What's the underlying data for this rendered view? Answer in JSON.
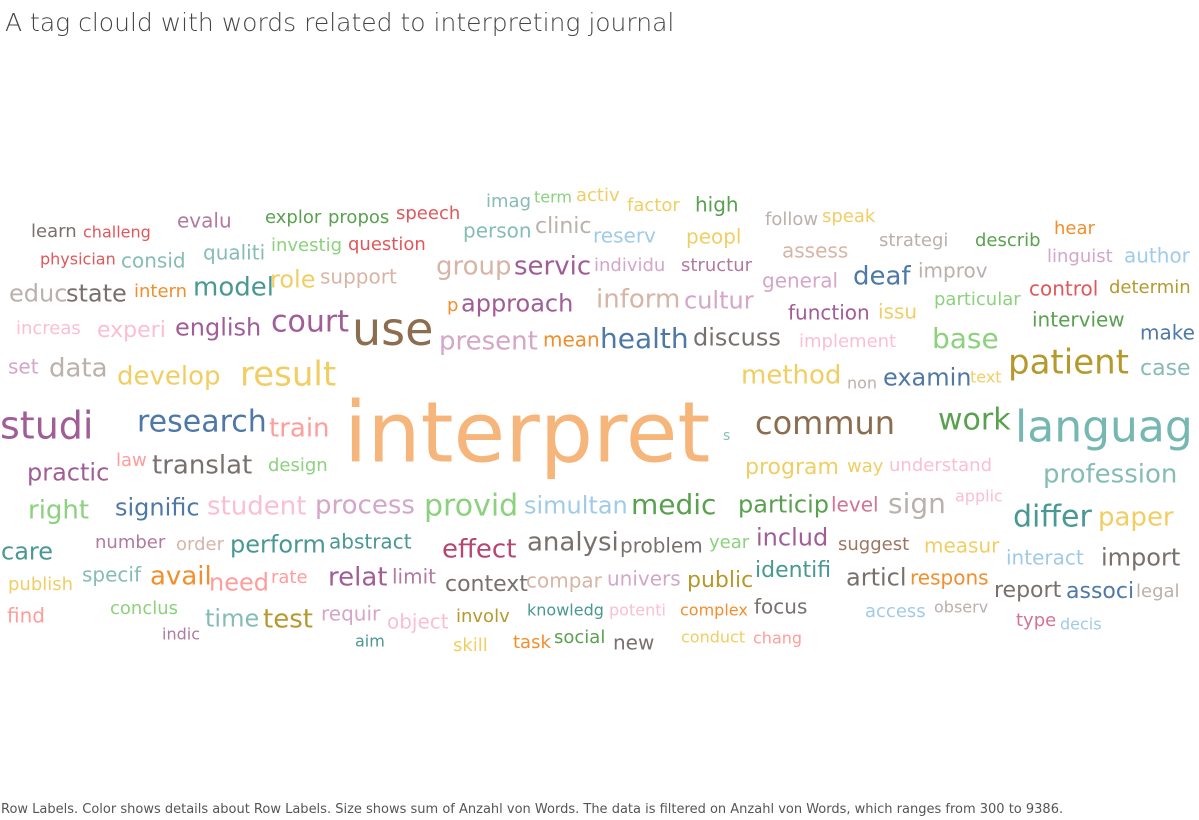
{
  "title": "A tag clould with words related to interpreting journal",
  "footer": "Row Labels.  Color shows details about Row Labels.  Size shows sum of Anzahl von Words. The data is filtered on Anzahl von Words, which ranges from 300 to 9386.",
  "chart_data": {
    "type": "word-cloud",
    "size_measure": "sum of Anzahl von Words",
    "filter_range": [
      300,
      9386
    ],
    "words": [
      {
        "text": "interpret",
        "value": 9386,
        "color": "#f6b67b"
      },
      {
        "text": "use",
        "value": 2200,
        "color": "#8c6d4f"
      },
      {
        "text": "languag",
        "value": 2100,
        "color": "#76b7b2"
      },
      {
        "text": "studi",
        "value": 2000,
        "color": "#a05d96"
      },
      {
        "text": "commun",
        "value": 1600,
        "color": "#8c6d4f"
      },
      {
        "text": "patient",
        "value": 1550,
        "color": "#b6992d"
      },
      {
        "text": "result",
        "value": 1450,
        "color": "#f1ce63"
      },
      {
        "text": "court",
        "value": 1350,
        "color": "#a05d96"
      },
      {
        "text": "research",
        "value": 1300,
        "color": "#4e79a7"
      },
      {
        "text": "work",
        "value": 1250,
        "color": "#59a14f"
      },
      {
        "text": "provid",
        "value": 1200,
        "color": "#8cd17d"
      },
      {
        "text": "differ",
        "value": 1150,
        "color": "#499894"
      },
      {
        "text": "health",
        "value": 1100,
        "color": "#4e79a7"
      },
      {
        "text": "profession",
        "value": 1050,
        "color": "#86bcb6"
      },
      {
        "text": "method",
        "value": 1000,
        "color": "#f1ce63"
      },
      {
        "text": "translat",
        "value": 980,
        "color": "#79706e"
      },
      {
        "text": "medic",
        "value": 960,
        "color": "#59a14f"
      },
      {
        "text": "data",
        "value": 950,
        "color": "#bab0ac"
      },
      {
        "text": "develop",
        "value": 940,
        "color": "#f1ce63"
      },
      {
        "text": "process",
        "value": 930,
        "color": "#d4a6c8"
      },
      {
        "text": "analysi",
        "value": 920,
        "color": "#79706e"
      },
      {
        "text": "train",
        "value": 910,
        "color": "#ff9d9a"
      },
      {
        "text": "paper",
        "value": 900,
        "color": "#f1ce63"
      },
      {
        "text": "sign",
        "value": 890,
        "color": "#bab0ac"
      },
      {
        "text": "student",
        "value": 880,
        "color": "#fabfd2"
      },
      {
        "text": "base",
        "value": 870,
        "color": "#8cd17d"
      },
      {
        "text": "group",
        "value": 860,
        "color": "#d7b5a6"
      },
      {
        "text": "effect",
        "value": 850,
        "color": "#b6456f"
      },
      {
        "text": "present",
        "value": 840,
        "color": "#d4a6c8"
      },
      {
        "text": "english",
        "value": 830,
        "color": "#a05d96"
      },
      {
        "text": "practic",
        "value": 820,
        "color": "#a05d96"
      },
      {
        "text": "care",
        "value": 810,
        "color": "#499894"
      },
      {
        "text": "servic",
        "value": 800,
        "color": "#a05d96"
      },
      {
        "text": "inform",
        "value": 790,
        "color": "#d7b5a6"
      },
      {
        "text": "program",
        "value": 780,
        "color": "#f1ce63"
      },
      {
        "text": "model",
        "value": 770,
        "color": "#499894"
      },
      {
        "text": "import",
        "value": 760,
        "color": "#79706e"
      },
      {
        "text": "deaf",
        "value": 750,
        "color": "#4e79a7"
      },
      {
        "text": "examin",
        "value": 740,
        "color": "#4e79a7"
      },
      {
        "text": "right",
        "value": 730,
        "color": "#8cd17d"
      },
      {
        "text": "signific",
        "value": 720,
        "color": "#4e79a7"
      },
      {
        "text": "particip",
        "value": 710,
        "color": "#59a14f"
      },
      {
        "text": "state",
        "value": 700,
        "color": "#79706e"
      },
      {
        "text": "discuss",
        "value": 690,
        "color": "#79706e"
      },
      {
        "text": "cultur",
        "value": 680,
        "color": "#d4a6c8"
      },
      {
        "text": "approach",
        "value": 670,
        "color": "#a05d96"
      },
      {
        "text": "simultan",
        "value": 660,
        "color": "#a0cbe8"
      },
      {
        "text": "case",
        "value": 650,
        "color": "#86bcb6"
      },
      {
        "text": "perform",
        "value": 640,
        "color": "#499894"
      },
      {
        "text": "educ",
        "value": 630,
        "color": "#bab0ac"
      },
      {
        "text": "relat",
        "value": 620,
        "color": "#a05d96"
      },
      {
        "text": "need",
        "value": 610,
        "color": "#ff9d9a"
      },
      {
        "text": "avail",
        "value": 600,
        "color": "#f28e2b"
      },
      {
        "text": "experi",
        "value": 590,
        "color": "#fabfd2"
      },
      {
        "text": "articl",
        "value": 580,
        "color": "#79706e"
      },
      {
        "text": "test",
        "value": 570,
        "color": "#b6992d"
      },
      {
        "text": "time",
        "value": 560,
        "color": "#86bcb6"
      },
      {
        "text": "role",
        "value": 550,
        "color": "#f1ce63"
      },
      {
        "text": "includ",
        "value": 540,
        "color": "#a05d96"
      },
      {
        "text": "interview",
        "value": 530,
        "color": "#59a14f"
      },
      {
        "text": "report",
        "value": 520,
        "color": "#79706e"
      },
      {
        "text": "associ",
        "value": 510,
        "color": "#4e79a7"
      },
      {
        "text": "identifi",
        "value": 505,
        "color": "#499894"
      },
      {
        "text": "problem",
        "value": 500,
        "color": "#79706e"
      },
      {
        "text": "public",
        "value": 495,
        "color": "#b6992d"
      },
      {
        "text": "context",
        "value": 490,
        "color": "#79706e"
      },
      {
        "text": "make",
        "value": 485,
        "color": "#4e79a7"
      },
      {
        "text": "control",
        "value": 480,
        "color": "#e15759"
      },
      {
        "text": "function",
        "value": 475,
        "color": "#a05d96"
      },
      {
        "text": "measur",
        "value": 470,
        "color": "#f1ce63"
      },
      {
        "text": "respons",
        "value": 465,
        "color": "#f28e2b"
      },
      {
        "text": "focus",
        "value": 460,
        "color": "#79706e"
      },
      {
        "text": "abstract",
        "value": 455,
        "color": "#499894"
      },
      {
        "text": "person",
        "value": 450,
        "color": "#86bcb6"
      },
      {
        "text": "clinic",
        "value": 445,
        "color": "#bab0ac"
      },
      {
        "text": "qualiti",
        "value": 440,
        "color": "#86bcb6"
      },
      {
        "text": "speech",
        "value": 435,
        "color": "#e15759"
      },
      {
        "text": "high",
        "value": 430,
        "color": "#59a14f"
      },
      {
        "text": "evalu",
        "value": 425,
        "color": "#b07aa1"
      },
      {
        "text": "specif",
        "value": 420,
        "color": "#86bcb6"
      },
      {
        "text": "limit",
        "value": 415,
        "color": "#b07aa1"
      },
      {
        "text": "requir",
        "value": 410,
        "color": "#d4a6c8"
      },
      {
        "text": "univers",
        "value": 405,
        "color": "#d4a6c8"
      },
      {
        "text": "compar",
        "value": 400,
        "color": "#d7b5a6"
      },
      {
        "text": "suggest",
        "value": 398,
        "color": "#9d7660"
      },
      {
        "text": "interact",
        "value": 396,
        "color": "#a0cbe8"
      },
      {
        "text": "author",
        "value": 394,
        "color": "#a0cbe8"
      },
      {
        "text": "linguist",
        "value": 392,
        "color": "#d4a6c8"
      },
      {
        "text": "determin",
        "value": 390,
        "color": "#b6992d"
      },
      {
        "text": "improv",
        "value": 388,
        "color": "#bab0ac"
      },
      {
        "text": "general",
        "value": 386,
        "color": "#d4a6c8"
      },
      {
        "text": "assess",
        "value": 384,
        "color": "#d7b5a6"
      },
      {
        "text": "speak",
        "value": 382,
        "color": "#f1ce63"
      },
      {
        "text": "peopl",
        "value": 380,
        "color": "#f1ce63"
      },
      {
        "text": "factor",
        "value": 378,
        "color": "#f1ce63"
      },
      {
        "text": "reserv",
        "value": 376,
        "color": "#a0cbe8"
      },
      {
        "text": "structur",
        "value": 374,
        "color": "#b07aa1"
      },
      {
        "text": "individu",
        "value": 372,
        "color": "#d4a6c8"
      },
      {
        "text": "mean",
        "value": 370,
        "color": "#f28e2b"
      },
      {
        "text": "question",
        "value": 368,
        "color": "#e15759"
      },
      {
        "text": "investig",
        "value": 366,
        "color": "#8cd17d"
      },
      {
        "text": "support",
        "value": 364,
        "color": "#d7b5a6"
      },
      {
        "text": "consid",
        "value": 362,
        "color": "#86bcb6"
      },
      {
        "text": "physician",
        "value": 360,
        "color": "#e15759"
      },
      {
        "text": "learn",
        "value": 358,
        "color": "#79706e"
      },
      {
        "text": "challeng",
        "value": 356,
        "color": "#e15759"
      },
      {
        "text": "explor",
        "value": 354,
        "color": "#59a14f"
      },
      {
        "text": "propos",
        "value": 352,
        "color": "#59a14f"
      },
      {
        "text": "imag",
        "value": 350,
        "color": "#86bcb6"
      },
      {
        "text": "term",
        "value": 348,
        "color": "#8cd17d"
      },
      {
        "text": "activ",
        "value": 346,
        "color": "#f1ce63"
      },
      {
        "text": "follow",
        "value": 344,
        "color": "#bab0ac"
      },
      {
        "text": "strategi",
        "value": 342,
        "color": "#bab0ac"
      },
      {
        "text": "describ",
        "value": 340,
        "color": "#59a14f"
      },
      {
        "text": "hear",
        "value": 338,
        "color": "#f28e2b"
      },
      {
        "text": "particular",
        "value": 336,
        "color": "#8cd17d"
      },
      {
        "text": "issu",
        "value": 334,
        "color": "#f1ce63"
      },
      {
        "text": "implement",
        "value": 332,
        "color": "#fabfd2"
      },
      {
        "text": "p",
        "value": 330,
        "color": "#f28e2b"
      },
      {
        "text": "intern",
        "value": 328,
        "color": "#f28e2b"
      },
      {
        "text": "increas",
        "value": 326,
        "color": "#fabfd2"
      },
      {
        "text": "set",
        "value": 324,
        "color": "#d4a6c8"
      },
      {
        "text": "law",
        "value": 322,
        "color": "#ff9d9a"
      },
      {
        "text": "design",
        "value": 320,
        "color": "#8cd17d"
      },
      {
        "text": "s",
        "value": 318,
        "color": "#86bcb6"
      },
      {
        "text": "non",
        "value": 316,
        "color": "#bab0ac"
      },
      {
        "text": "text",
        "value": 314,
        "color": "#f1ce63"
      },
      {
        "text": "way",
        "value": 312,
        "color": "#f1ce63"
      },
      {
        "text": "understand",
        "value": 311,
        "color": "#fabfd2"
      },
      {
        "text": "applic",
        "value": 310,
        "color": "#fabfd2"
      },
      {
        "text": "level",
        "value": 309,
        "color": "#d37295"
      },
      {
        "text": "year",
        "value": 308,
        "color": "#8cd17d"
      },
      {
        "text": "number",
        "value": 307,
        "color": "#b07aa1"
      },
      {
        "text": "order",
        "value": 306,
        "color": "#d7b5a6"
      },
      {
        "text": "rate",
        "value": 305,
        "color": "#ff9d9a"
      },
      {
        "text": "publish",
        "value": 304,
        "color": "#f1ce63"
      },
      {
        "text": "find",
        "value": 304,
        "color": "#ff9d9a"
      },
      {
        "text": "conclus",
        "value": 303,
        "color": "#8cd17d"
      },
      {
        "text": "indic",
        "value": 303,
        "color": "#b07aa1"
      },
      {
        "text": "aim",
        "value": 302,
        "color": "#499894"
      },
      {
        "text": "object",
        "value": 302,
        "color": "#fabfd2"
      },
      {
        "text": "involv",
        "value": 302,
        "color": "#b6992d"
      },
      {
        "text": "skill",
        "value": 301,
        "color": "#f1ce63"
      },
      {
        "text": "task",
        "value": 301,
        "color": "#f28e2b"
      },
      {
        "text": "social",
        "value": 301,
        "color": "#59a14f"
      },
      {
        "text": "new",
        "value": 301,
        "color": "#79706e"
      },
      {
        "text": "knowledg",
        "value": 300,
        "color": "#499894"
      },
      {
        "text": "potenti",
        "value": 300,
        "color": "#fabfd2"
      },
      {
        "text": "complex",
        "value": 300,
        "color": "#f28e2b"
      },
      {
        "text": "conduct",
        "value": 300,
        "color": "#f1ce63"
      },
      {
        "text": "chang",
        "value": 300,
        "color": "#ff9d9a"
      },
      {
        "text": "access",
        "value": 300,
        "color": "#a0cbe8"
      },
      {
        "text": "observ",
        "value": 300,
        "color": "#bab0ac"
      },
      {
        "text": "type",
        "value": 300,
        "color": "#d37295"
      },
      {
        "text": "decis",
        "value": 300,
        "color": "#a0cbe8"
      },
      {
        "text": "legal",
        "value": 300,
        "color": "#bab0ac"
      }
    ]
  }
}
